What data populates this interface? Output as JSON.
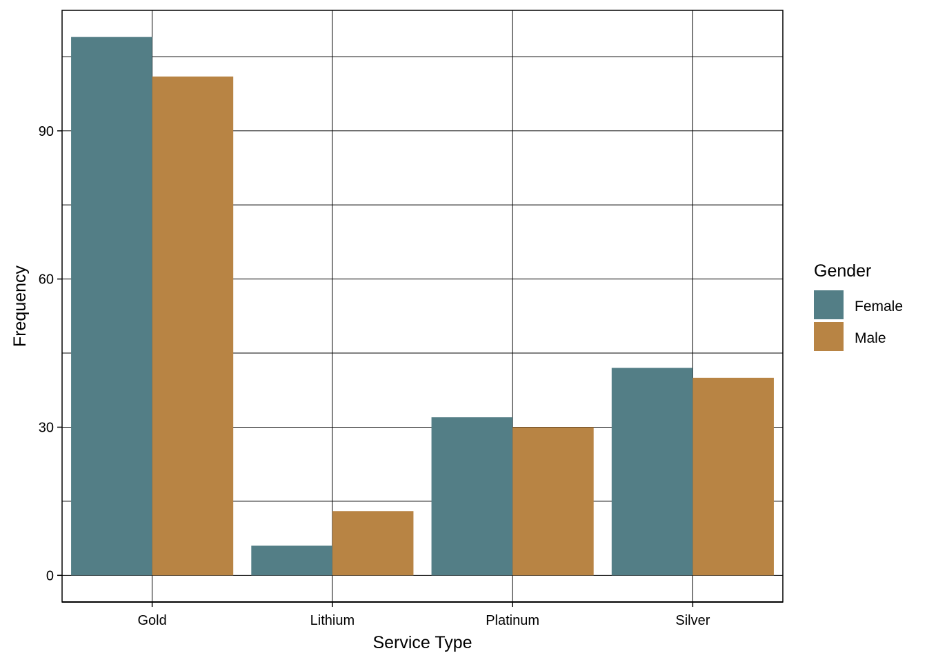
{
  "chart_data": {
    "type": "bar",
    "title": "",
    "xlabel": "Service Type",
    "ylabel": "Frequency",
    "categories": [
      "Gold",
      "Lithium",
      "Platinum",
      "Silver"
    ],
    "series": [
      {
        "name": "Female",
        "values": [
          109,
          6,
          32,
          42
        ],
        "color": "#537E86"
      },
      {
        "name": "Male",
        "values": [
          101,
          13,
          30,
          40
        ],
        "color": "#B88444"
      }
    ],
    "ylim": [
      -5.4,
      114.4
    ],
    "yticks": [
      0,
      30,
      60,
      90
    ],
    "grid": true,
    "legend": {
      "title": "Gender",
      "position": "right"
    }
  }
}
